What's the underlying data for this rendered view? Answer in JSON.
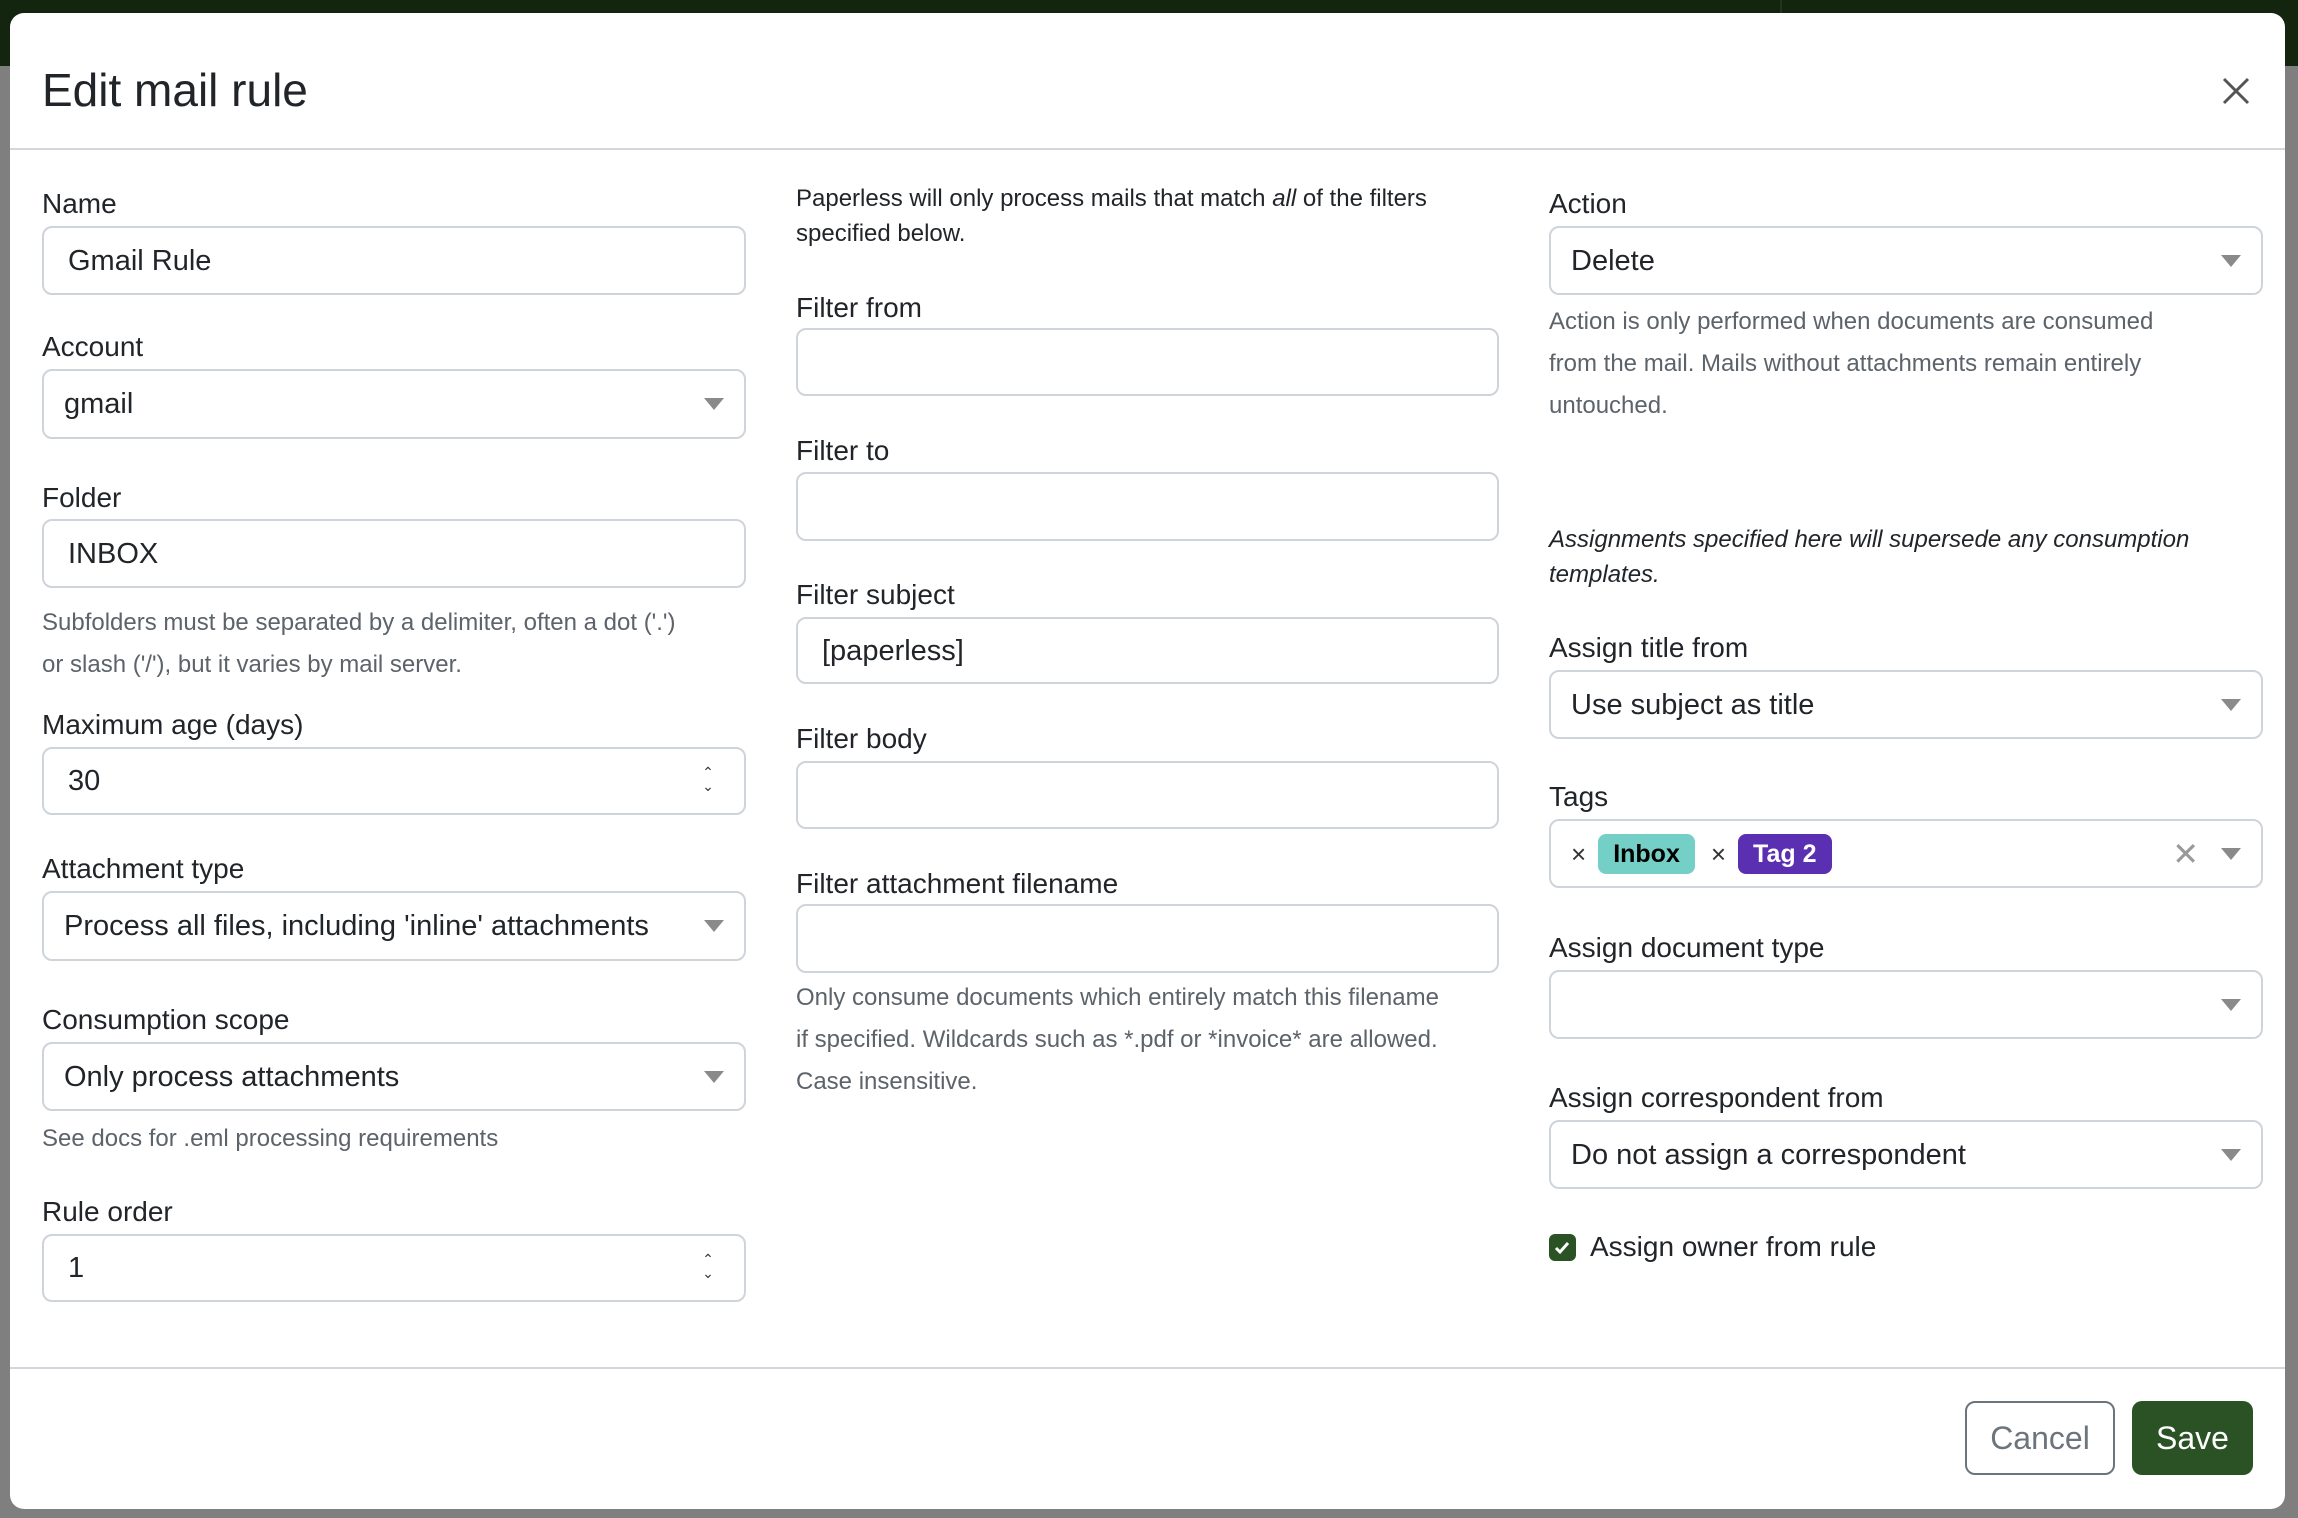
{
  "modal": {
    "title": "Edit mail rule"
  },
  "col1": {
    "name": {
      "label": "Name",
      "value": "Gmail Rule"
    },
    "account": {
      "label": "Account",
      "value": "gmail"
    },
    "folder": {
      "label": "Folder",
      "value": "INBOX",
      "help1": "Subfolders must be separated by a delimiter, often a dot ('.')",
      "help2": "or slash ('/'), but it varies by mail server."
    },
    "max_age": {
      "label": "Maximum age (days)",
      "value": "30"
    },
    "attachment_type": {
      "label": "Attachment type",
      "value": "Process all files, including 'inline' attachments"
    },
    "consumption_scope": {
      "label": "Consumption scope",
      "value": "Only process attachments",
      "help": "See docs for .eml processing requirements"
    },
    "rule_order": {
      "label": "Rule order",
      "value": "1"
    }
  },
  "col2": {
    "intro_a": "Paperless will only process mails that match ",
    "intro_em": "all",
    "intro_b": " of the filters",
    "intro_c": "specified below.",
    "filter_from": {
      "label": "Filter from",
      "value": ""
    },
    "filter_to": {
      "label": "Filter to",
      "value": ""
    },
    "filter_subject": {
      "label": "Filter subject",
      "value": "[paperless]"
    },
    "filter_body": {
      "label": "Filter body",
      "value": ""
    },
    "filter_attachment": {
      "label": "Filter attachment filename",
      "value": "",
      "help1": "Only consume documents which entirely match this filename",
      "help2": "if specified. Wildcards such as *.pdf or *invoice* are allowed.",
      "help3": "Case insensitive."
    }
  },
  "col3": {
    "action": {
      "label": "Action",
      "value": "Delete",
      "help1": "Action is only performed when documents are consumed",
      "help2": "from the mail. Mails without attachments remain entirely",
      "help3": "untouched."
    },
    "assign_note1": "Assignments specified here will supersede any consumption",
    "assign_note2": "templates.",
    "assign_title": {
      "label": "Assign title from",
      "value": "Use subject as title"
    },
    "tags": {
      "label": "Tags",
      "items": [
        {
          "name": "Inbox",
          "bg": "#74d0c6",
          "fg": "#000000"
        },
        {
          "name": "Tag 2",
          "bg": "#5a2fb2",
          "fg": "#ffffff"
        }
      ]
    },
    "doc_type": {
      "label": "Assign document type",
      "value": ""
    },
    "correspondent": {
      "label": "Assign correspondent from",
      "value": "Do not assign a correspondent"
    },
    "owner": {
      "label": "Assign owner from rule",
      "checked": true
    }
  },
  "footer": {
    "cancel": "Cancel",
    "save": "Save"
  },
  "colors": {
    "primary": "#2b5225",
    "backdrop": "#7f7f7f"
  }
}
